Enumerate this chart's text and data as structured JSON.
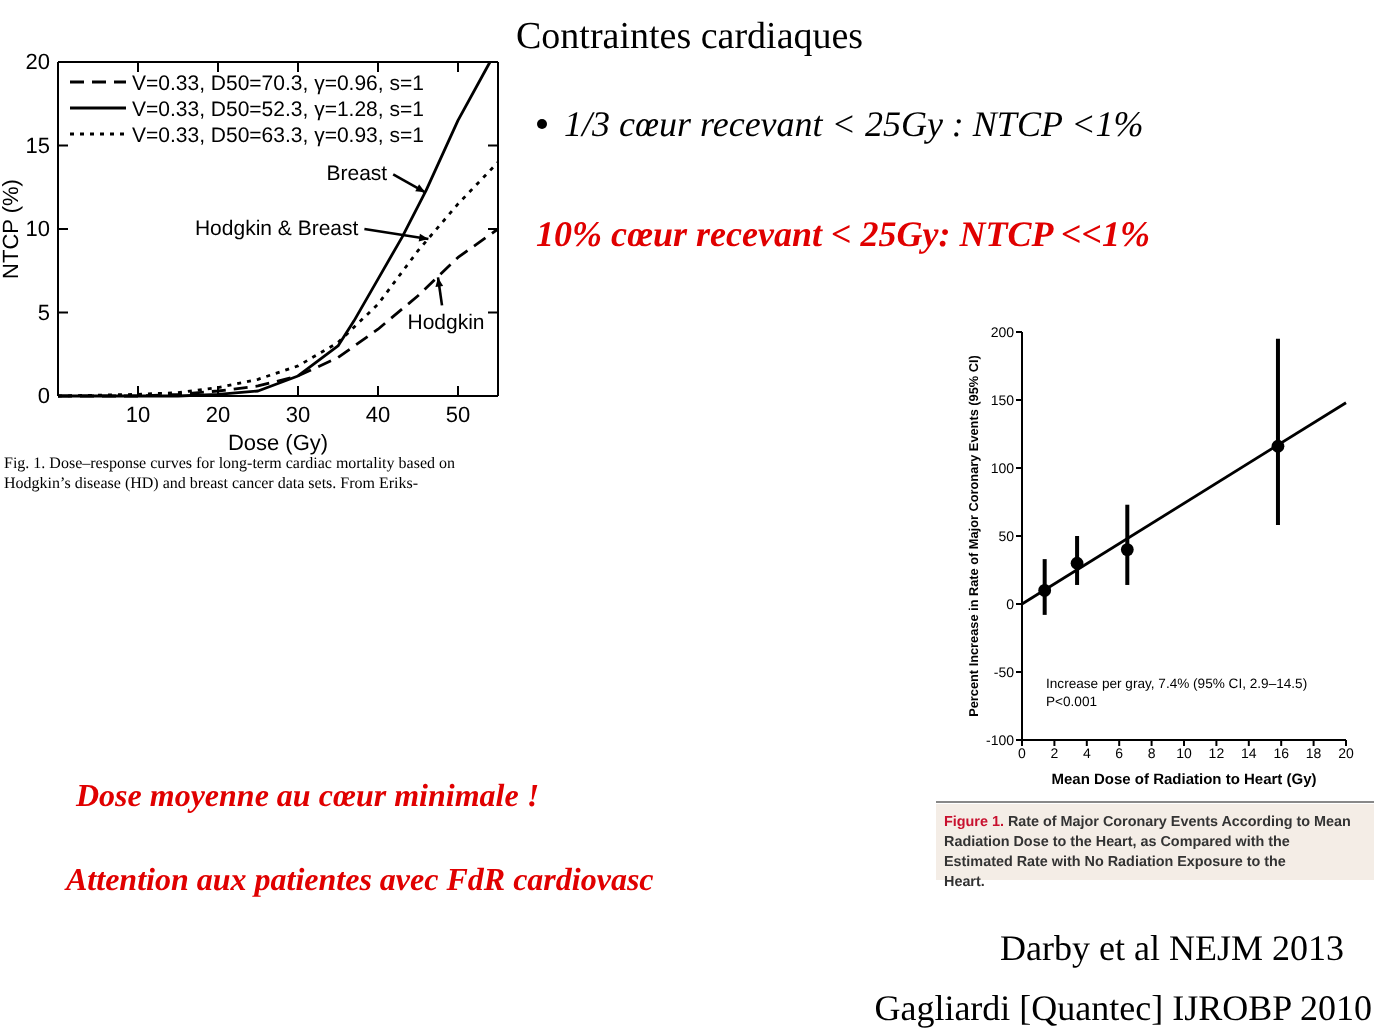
{
  "chart_data": [
    {
      "type": "line",
      "xlabel": "Dose (Gy)",
      "ylabel": "NTCP (%)",
      "xlim": [
        0,
        55
      ],
      "ylim": [
        0,
        20
      ],
      "xticks": [
        10,
        20,
        30,
        40,
        50
      ],
      "yticks": [
        0,
        5,
        10,
        15,
        20
      ],
      "grid": false,
      "legend": "top left",
      "series": [
        {
          "name": "V=0.33, D50=70.3, γ=0.96, s=1",
          "color": "#000000",
          "line_style": "dashed",
          "x": [
            0,
            10,
            15,
            20,
            25,
            30,
            35,
            40,
            45,
            50,
            55
          ],
          "values": [
            0,
            0,
            0.1,
            0.3,
            0.6,
            1.2,
            2.3,
            4,
            6,
            8.3,
            10
          ]
        },
        {
          "name": "V=0.33, D50=52.3, γ=1.28, s=1",
          "color": "#000000",
          "line_style": "solid",
          "x": [
            0,
            10,
            15,
            20,
            25,
            30,
            35,
            37,
            40,
            43,
            46,
            50,
            54
          ],
          "values": [
            0,
            0,
            0,
            0.1,
            0.3,
            1.2,
            3,
            4.5,
            7,
            9.5,
            12.3,
            16.5,
            20
          ]
        },
        {
          "name": "V=0.33, D50=63.3, γ=0.93, s=1",
          "color": "#000000",
          "line_style": "dotted",
          "x": [
            0,
            10,
            15,
            20,
            25,
            30,
            35,
            40,
            45,
            50,
            55
          ],
          "values": [
            0,
            0.1,
            0.2,
            0.5,
            1,
            1.8,
            3.2,
            5.5,
            8.7,
            11.5,
            14
          ]
        }
      ],
      "annotations": [
        {
          "text": "Breast",
          "x": 45.9,
          "y": 12.2
        },
        {
          "text": "Hodgkin & Breast",
          "x": 46.3,
          "y": 9.4
        },
        {
          "text": "Hodgkin",
          "x": 47.5,
          "y": 7.1
        },
        "Fig. 1.  Dose–response curves for long-term cardiac mortality based on Hodgkin’s disease (HD) and breast cancer data sets. From Eriks-"
      ]
    },
    {
      "type": "scatter",
      "xlabel": "Mean Dose of Radiation to Heart (Gy)",
      "ylabel": "Percent Increase in Rate of Major Coronary Events (95% CI)",
      "xlim": [
        0,
        20
      ],
      "ylim": [
        -100,
        200
      ],
      "xticks": [
        0,
        2,
        4,
        6,
        8,
        10,
        12,
        14,
        16,
        18,
        20
      ],
      "yticks": [
        -100,
        -50,
        0,
        50,
        100,
        150,
        200
      ],
      "grid": false,
      "series": [
        {
          "type": "scatter",
          "color": "#000000",
          "marker": "circle",
          "x": [
            1.4,
            3.4,
            6.5,
            15.8
          ],
          "values": [
            10,
            30,
            40,
            116
          ],
          "errors": [
            [
              -8,
              33
            ],
            [
              14,
              50
            ],
            [
              14,
              73
            ],
            [
              58,
              195
            ]
          ]
        },
        {
          "type": "line",
          "color": "#000000",
          "x": [
            0,
            20
          ],
          "values": [
            0,
            148
          ]
        }
      ],
      "annotations": [
        "Increase per gray, 7.4% (95% CI, 2.9–14.5)",
        "P<0.001",
        "Figure 1. Rate of Major Coronary Events According to Mean Radiation Dose to the Heart, as Compared with the Estimated Rate with No Radiation Exposure to the Heart."
      ]
    },
    {
      "type": "other",
      "title": "Contraintes cardiaques",
      "annotations": [
        "1/3 cœur recevant < 25Gy : NTCP <1%",
        "10% cœur recevant < 25Gy: NTCP <<1%",
        "Dose moyenne au cœur minimale !",
        "Attention aux patientes avec FdR cardiovasc",
        "Darby et al NEJM 2013",
        "Gagliardi [Quantec] IJROBP 2010"
      ]
    }
  ]
}
